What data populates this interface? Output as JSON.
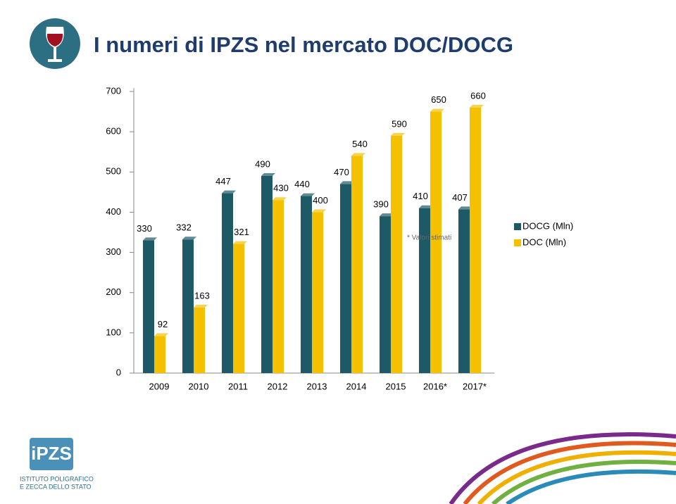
{
  "header": {
    "title": "I numeri di IPZS nel mercato DOC/DOCG"
  },
  "logo": {
    "mark": "iPZS",
    "line1": "ISTITUTO POLIGRAFICO",
    "line2": "E ZECCA DELLO STATO"
  },
  "chart_data": {
    "type": "bar",
    "categories": [
      "2009",
      "2010",
      "2011",
      "2012",
      "2013",
      "2014",
      "2015",
      "2016*",
      "2017*"
    ],
    "series": [
      {
        "name": "DOCG (Mln)",
        "color": "#1e5a66",
        "values": [
          330,
          332,
          447,
          490,
          440,
          470,
          390,
          410,
          407
        ]
      },
      {
        "name": "DOC (Mln)",
        "color": "#f5c000",
        "values": [
          92,
          163,
          321,
          430,
          400,
          540,
          590,
          650,
          660
        ]
      }
    ],
    "ylim": [
      0,
      700
    ],
    "yticks": [
      0,
      100,
      200,
      300,
      400,
      500,
      600,
      700
    ],
    "note": "* Valori stimati",
    "legend": "right"
  }
}
